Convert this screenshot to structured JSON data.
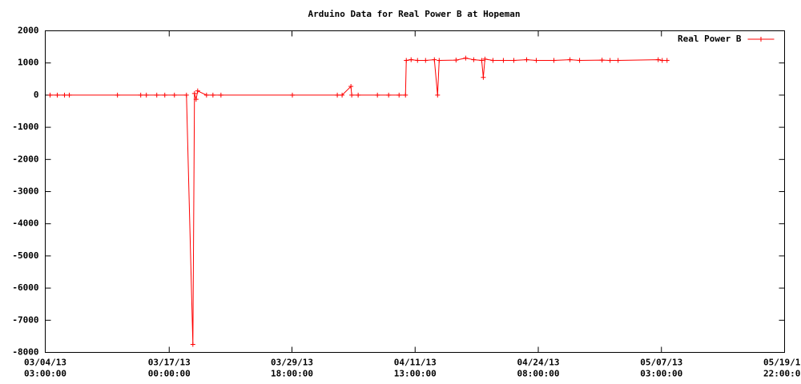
{
  "chart_data": {
    "type": "line",
    "title": "Arduino Data for Real Power B at Hopeman",
    "x": [
      "03/04/13 15:00:00",
      "03/05/13 09:00:00",
      "03/06/13 03:00:00",
      "03/06/13 15:00:00",
      "03/11/13 15:00:00",
      "03/14/13 01:00:00",
      "03/14/13 15:00:00",
      "03/15/13 17:00:00",
      "03/16/13 13:00:00",
      "03/17/13 13:00:00",
      "03/18/13 19:00:00",
      "03/19/13 11:00:00",
      "03/19/13 15:00:00",
      "03/19/13 19:00:00",
      "03/19/13 23:00:00",
      "03/20/13 21:00:00",
      "03/21/13 13:00:00",
      "03/22/13 09:00:00",
      "03/29/13 19:00:00",
      "04/03/13 11:00:00",
      "04/03/13 23:00:00",
      "04/04/13 21:00:00",
      "04/04/13 23:00:00",
      "04/05/13 15:00:00",
      "04/07/13 15:00:00",
      "04/08/13 19:00:00",
      "04/09/13 21:00:00",
      "04/10/13 13:00:00",
      "04/10/13 15:00:00",
      "04/11/13 03:00:00",
      "04/11/13 19:00:00",
      "04/12/13 15:00:00",
      "04/13/13 13:00:00",
      "04/13/13 21:00:00",
      "04/14/13 01:00:00",
      "04/15/13 19:00:00",
      "04/16/13 19:00:00",
      "04/17/13 15:00:00",
      "04/18/13 11:00:00",
      "04/18/13 15:00:00",
      "04/18/13 19:00:00",
      "04/19/13 15:00:00",
      "04/20/13 17:00:00",
      "04/21/13 19:00:00",
      "04/23/13 03:00:00",
      "04/24/13 03:00:00",
      "04/25/13 23:00:00",
      "04/27/13 15:00:00",
      "04/28/13 15:00:00",
      "04/30/13 23:00:00",
      "05/01/13 19:00:00",
      "05/02/13 15:00:00",
      "05/06/13 19:00:00",
      "05/07/13 05:00:00",
      "05/07/13 17:00:00"
    ],
    "series": [
      {
        "name": "Real Power B",
        "color": "#ff0000",
        "values": [
          0,
          0,
          0,
          0,
          0,
          0,
          0,
          0,
          0,
          0,
          0,
          -7750,
          50,
          -130,
          130,
          0,
          0,
          0,
          0,
          0,
          0,
          270,
          0,
          0,
          0,
          0,
          0,
          0,
          1080,
          1100,
          1080,
          1080,
          1100,
          0,
          1080,
          1090,
          1150,
          1100,
          1080,
          550,
          1120,
          1080,
          1080,
          1080,
          1100,
          1080,
          1080,
          1100,
          1080,
          1090,
          1080,
          1080,
          1100,
          1080,
          1080
        ]
      }
    ],
    "xlim": [
      "03/04/13 03:00:00",
      "05/19/13 22:00:00"
    ],
    "xticks": [
      "03/04/13 03:00:00",
      "03/17/13 00:00:00",
      "03/29/13 18:00:00",
      "04/11/13 13:00:00",
      "04/24/13 08:00:00",
      "05/07/13 03:00:00",
      "05/19/13 22:00:00"
    ],
    "ylim": [
      -8000,
      2000
    ],
    "yticks": [
      -8000,
      -7000,
      -6000,
      -5000,
      -4000,
      -3000,
      -2000,
      -1000,
      0,
      1000,
      2000
    ],
    "legend": "top-right"
  }
}
